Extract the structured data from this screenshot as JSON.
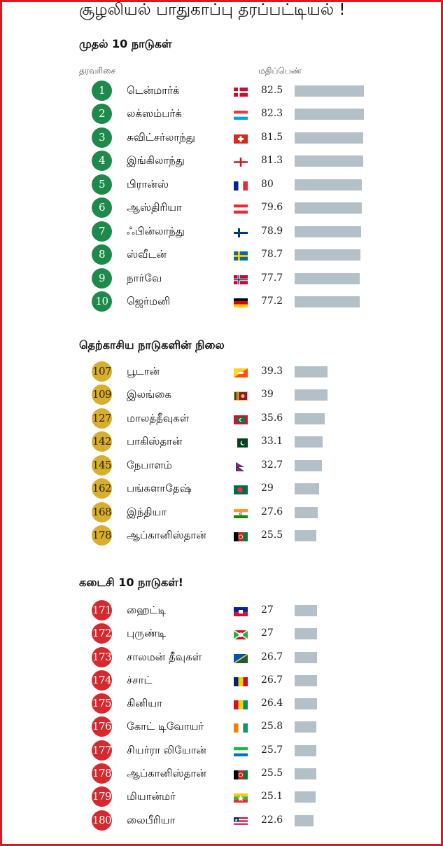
{
  "title": "சூழலியல் பாதுகாப்பு தரப்பட்டியல் !",
  "columns": {
    "rank": "தரவரிசை",
    "score": "மதிப்பெண்"
  },
  "colors": {
    "frame": "#e8141c",
    "top_badge": "#1d8a4b",
    "south_asia_badge": "#d8ae2f",
    "bottom_badge": "#d42a2f",
    "bar": "#b3c0c8"
  },
  "chart_data": [
    {
      "type": "bar",
      "title": "முதல் 10 நாடுகள்",
      "badge": "green",
      "rows": [
        {
          "rank": "1",
          "country": "டென்மார்க்",
          "flag": "denmark-flag",
          "score": "82.5",
          "value": 82.5
        },
        {
          "rank": "2",
          "country": "லக்ஸம்பர்க்",
          "flag": "luxembourg-flag",
          "score": "82.3",
          "value": 82.3
        },
        {
          "rank": "3",
          "country": "சுவிட்சர்லாந்து",
          "flag": "switzerland-flag",
          "score": "81.5",
          "value": 81.5
        },
        {
          "rank": "4",
          "country": "இங்கிலாந்து",
          "flag": "england-flag",
          "score": "81.3",
          "value": 81.3
        },
        {
          "rank": "5",
          "country": "பிரான்ஸ்",
          "flag": "france-flag",
          "score": "80",
          "value": 80
        },
        {
          "rank": "6",
          "country": "ஆஸ்திரியா",
          "flag": "austria-flag",
          "score": "79.6",
          "value": 79.6
        },
        {
          "rank": "7",
          "country": "ஃபின்லாந்து",
          "flag": "finland-flag",
          "score": "78.9",
          "value": 78.9
        },
        {
          "rank": "8",
          "country": "ஸ்வீடன்",
          "flag": "sweden-flag",
          "score": "78.7",
          "value": 78.7
        },
        {
          "rank": "9",
          "country": "நார்வே",
          "flag": "norway-flag",
          "score": "77.7",
          "value": 77.7
        },
        {
          "rank": "10",
          "country": "ஜெர்மனி",
          "flag": "germany-flag",
          "score": "77.2",
          "value": 77.2
        }
      ]
    },
    {
      "type": "bar",
      "title": "தெற்காசிய நாடுகளின் நிலை",
      "badge": "gold",
      "rows": [
        {
          "rank": "107",
          "country": "பூடான்",
          "flag": "bhutan-flag",
          "score": "39.3",
          "value": 39.3
        },
        {
          "rank": "109",
          "country": "இலங்கை",
          "flag": "sri-lanka-flag",
          "score": "39",
          "value": 39
        },
        {
          "rank": "127",
          "country": "மாலத்தீவுகள்",
          "flag": "maldives-flag",
          "score": "35.6",
          "value": 35.6
        },
        {
          "rank": "142",
          "country": "பாகிஸ்தான்",
          "flag": "pakistan-flag",
          "score": "33.1",
          "value": 33.1
        },
        {
          "rank": "145",
          "country": "நேபாளம்",
          "flag": "nepal-flag",
          "score": "32.7",
          "value": 32.7
        },
        {
          "rank": "162",
          "country": "பங்களாதேஷ்",
          "flag": "bangladesh-flag",
          "score": "29",
          "value": 29
        },
        {
          "rank": "168",
          "country": "இந்தியா",
          "flag": "india-flag",
          "score": "27.6",
          "value": 27.6
        },
        {
          "rank": "178",
          "country": "ஆப்கானிஸ்தான்",
          "flag": "afghanistan-flag",
          "score": "25.5",
          "value": 25.5
        }
      ]
    },
    {
      "type": "bar",
      "title": "கடைசி 10 நாடுகள்!",
      "badge": "red",
      "rows": [
        {
          "rank": "171",
          "country": "ஹைட்டி",
          "flag": "haiti-flag",
          "score": "27",
          "value": 27
        },
        {
          "rank": "172",
          "country": "புருண்டி",
          "flag": "burundi-flag",
          "score": "27",
          "value": 27
        },
        {
          "rank": "173",
          "country": "சாலமன் தீவுகள்",
          "flag": "solomon-islands-flag",
          "score": "26.7",
          "value": 26.7
        },
        {
          "rank": "174",
          "country": "ச்சாட்",
          "flag": "chad-flag",
          "score": "26.7",
          "value": 26.7
        },
        {
          "rank": "175",
          "country": "கினியா",
          "flag": "guinea-flag",
          "score": "26.4",
          "value": 26.4
        },
        {
          "rank": "176",
          "country": "கோட் டிவோயர்",
          "flag": "ivory-coast-flag",
          "score": "25.8",
          "value": 25.8
        },
        {
          "rank": "177",
          "country": "சியர்ரா லியோன்",
          "flag": "sierra-leone-flag",
          "score": "25.7",
          "value": 25.7
        },
        {
          "rank": "178",
          "country": "ஆப்கானிஸ்தான்",
          "flag": "afghanistan-flag",
          "score": "25.5",
          "value": 25.5
        },
        {
          "rank": "179",
          "country": "மியான்மர்",
          "flag": "myanmar-flag",
          "score": "25.1",
          "value": 25.1
        },
        {
          "rank": "180",
          "country": "லைபீரியா",
          "flag": "liberia-flag",
          "score": "22.6",
          "value": 22.6
        }
      ]
    }
  ]
}
